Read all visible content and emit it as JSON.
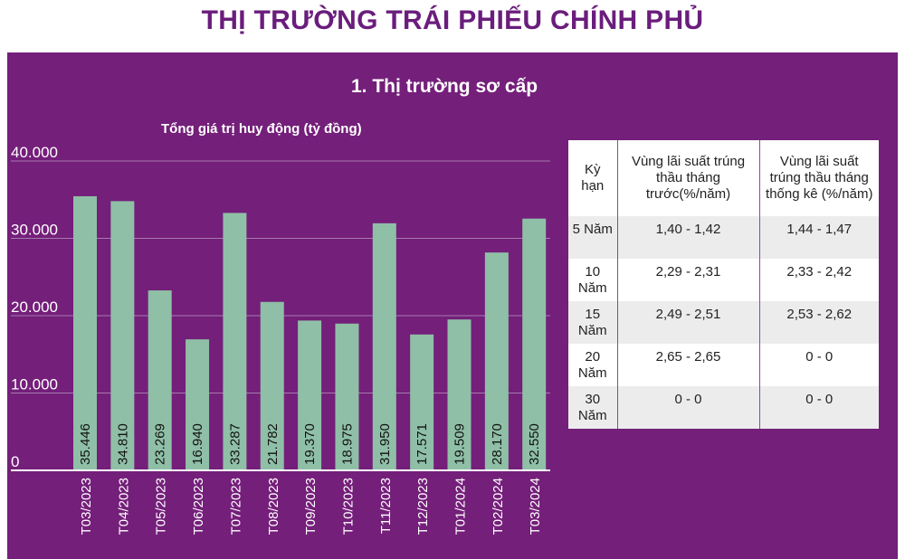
{
  "page_title": "THỊ TRƯỜNG TRÁI PHIẾU CHÍNH PHỦ",
  "section_title": "1. Thị trường sơ cấp",
  "colors": {
    "panel": "#741f7a",
    "bar": "#8fbfa7",
    "title": "#6a1d7c",
    "gridline": "#a57aad"
  },
  "chart_data": {
    "type": "bar",
    "title": "Tổng giá trị huy động (tỷ đồng)",
    "categories": [
      "T03/2023",
      "T04/2023",
      "T05/2023",
      "T06/2023",
      "T07/2023",
      "T08/2023",
      "T09/2023",
      "T10/2023",
      "T11/2023",
      "T12/2023",
      "T01/2024",
      "T02/2024",
      "T03/2024"
    ],
    "values": [
      35446,
      34810,
      23269,
      16940,
      33287,
      21782,
      19370,
      18975,
      31950,
      17571,
      19509,
      28170,
      32550
    ],
    "value_labels": [
      "35.446",
      "34.810",
      "23.269",
      "16.940",
      "33.287",
      "21.782",
      "19.370",
      "18.975",
      "31.950",
      "17.571",
      "19.509",
      "28.170",
      "32.550"
    ],
    "yticks": [
      "0",
      "10.000",
      "20.000",
      "30.000",
      "40.000"
    ],
    "ylim": [
      0,
      40000
    ],
    "grid": true
  },
  "rate_table": {
    "headers": [
      "Kỳ hạn",
      "Vùng lãi suất trúng thầu tháng trước(%/năm)",
      "Vùng lãi suất trúng thầu tháng thống kê (%/năm)"
    ],
    "rows": [
      {
        "term": "5 Năm",
        "prev": "1,40 - 1,42",
        "current": "1,44 - 1,47"
      },
      {
        "term": "10 Năm",
        "prev": "2,29 - 2,31",
        "current": "2,33 - 2,42"
      },
      {
        "term": "15 Năm",
        "prev": "2,49 - 2,51",
        "current": "2,53 - 2,62"
      },
      {
        "term": "20 Năm",
        "prev": "2,65 - 2,65",
        "current": "0 - 0"
      },
      {
        "term": "30 Năm",
        "prev": "0 - 0",
        "current": "0 - 0"
      }
    ]
  }
}
